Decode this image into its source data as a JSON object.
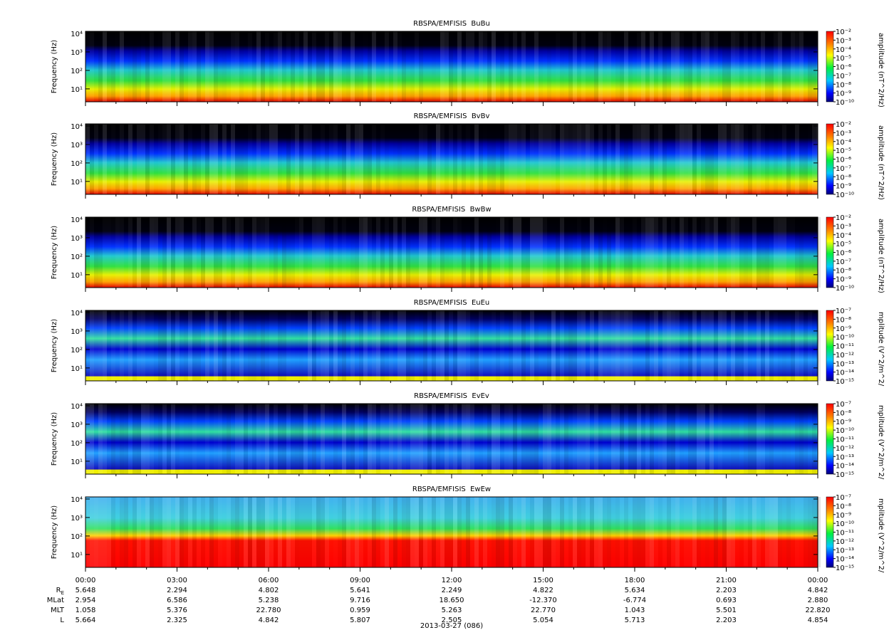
{
  "chart_data": [
    {
      "type": "spectrogram",
      "title": "RBSPA/EMFISIS  BuBu",
      "ylabel": "Frequency (Hz)",
      "log_y": true,
      "ylim": [
        2,
        13000
      ],
      "yticks": [
        {
          "value": 10,
          "label": "10¹"
        },
        {
          "value": 100,
          "label": "10²"
        },
        {
          "value": 1000,
          "label": "10³"
        },
        {
          "value": 10000,
          "label": "10⁴"
        }
      ],
      "colorbar": {
        "label": "amplitude (nT^2/Hz)",
        "lim": [
          1e-10,
          0.01
        ],
        "ticks": [
          {
            "value": 0.01,
            "label": "10⁻²"
          },
          {
            "value": 0.001,
            "label": "10⁻³"
          },
          {
            "value": 0.0001,
            "label": "10⁻⁴"
          },
          {
            "value": 1e-05,
            "label": "10⁻⁵"
          },
          {
            "value": 1e-06,
            "label": "10⁻⁶"
          },
          {
            "value": 1e-07,
            "label": "10⁻⁷"
          },
          {
            "value": 1e-08,
            "label": "10⁻⁸"
          },
          {
            "value": 1e-09,
            "label": "10⁻⁹"
          },
          {
            "value": 1e-10,
            "label": "10⁻¹⁰"
          }
        ]
      }
    },
    {
      "type": "spectrogram",
      "title": "RBSPA/EMFISIS  BvBv",
      "ylabel": "Frequency (Hz)",
      "log_y": true,
      "ylim": [
        2,
        13000
      ],
      "yticks": [
        {
          "value": 10,
          "label": "10¹"
        },
        {
          "value": 100,
          "label": "10²"
        },
        {
          "value": 1000,
          "label": "10³"
        },
        {
          "value": 10000,
          "label": "10⁴"
        }
      ],
      "colorbar": {
        "label": "amplitude (nT^2/Hz)",
        "lim": [
          1e-10,
          0.01
        ],
        "ticks": [
          {
            "value": 0.01,
            "label": "10⁻²"
          },
          {
            "value": 0.001,
            "label": "10⁻³"
          },
          {
            "value": 0.0001,
            "label": "10⁻⁴"
          },
          {
            "value": 1e-05,
            "label": "10⁻⁵"
          },
          {
            "value": 1e-06,
            "label": "10⁻⁶"
          },
          {
            "value": 1e-07,
            "label": "10⁻⁷"
          },
          {
            "value": 1e-08,
            "label": "10⁻⁸"
          },
          {
            "value": 1e-09,
            "label": "10⁻⁹"
          },
          {
            "value": 1e-10,
            "label": "10⁻¹⁰"
          }
        ]
      }
    },
    {
      "type": "spectrogram",
      "title": "RBSPA/EMFISIS  BwBw",
      "ylabel": "Frequency (Hz)",
      "log_y": true,
      "ylim": [
        2,
        13000
      ],
      "yticks": [
        {
          "value": 10,
          "label": "10¹"
        },
        {
          "value": 100,
          "label": "10²"
        },
        {
          "value": 1000,
          "label": "10³"
        },
        {
          "value": 10000,
          "label": "10⁴"
        }
      ],
      "colorbar": {
        "label": "amplitude (nT^2/Hz)",
        "lim": [
          1e-10,
          0.01
        ],
        "ticks": [
          {
            "value": 0.01,
            "label": "10⁻²"
          },
          {
            "value": 0.001,
            "label": "10⁻³"
          },
          {
            "value": 0.0001,
            "label": "10⁻⁴"
          },
          {
            "value": 1e-05,
            "label": "10⁻⁵"
          },
          {
            "value": 1e-06,
            "label": "10⁻⁶"
          },
          {
            "value": 1e-07,
            "label": "10⁻⁷"
          },
          {
            "value": 1e-08,
            "label": "10⁻⁸"
          },
          {
            "value": 1e-09,
            "label": "10⁻⁹"
          },
          {
            "value": 1e-10,
            "label": "10⁻¹⁰"
          }
        ]
      }
    },
    {
      "type": "spectrogram",
      "title": "RBSPA/EMFISIS  EuEu",
      "ylabel": "Frequency (Hz)",
      "log_y": true,
      "ylim": [
        2,
        13000
      ],
      "yticks": [
        {
          "value": 10,
          "label": "10¹"
        },
        {
          "value": 100,
          "label": "10²"
        },
        {
          "value": 1000,
          "label": "10³"
        },
        {
          "value": 10000,
          "label": "10⁴"
        }
      ],
      "colorbar": {
        "label": "mplitude (V^2/m^2/",
        "lim": [
          1e-15,
          1e-07
        ],
        "ticks": [
          {
            "value": 1e-07,
            "label": "10⁻⁷"
          },
          {
            "value": 1e-08,
            "label": "10⁻⁸"
          },
          {
            "value": 1e-09,
            "label": "10⁻⁹"
          },
          {
            "value": 1e-10,
            "label": "10⁻¹⁰"
          },
          {
            "value": 1e-11,
            "label": "10⁻¹¹"
          },
          {
            "value": 1e-12,
            "label": "10⁻¹²"
          },
          {
            "value": 1e-13,
            "label": "10⁻¹³"
          },
          {
            "value": 1e-14,
            "label": "10⁻¹⁴"
          },
          {
            "value": 1e-15,
            "label": "10⁻¹⁵"
          }
        ]
      }
    },
    {
      "type": "spectrogram",
      "title": "RBSPA/EMFISIS  EvEv",
      "ylabel": "Frequency (Hz)",
      "log_y": true,
      "ylim": [
        2,
        13000
      ],
      "yticks": [
        {
          "value": 10,
          "label": "10¹"
        },
        {
          "value": 100,
          "label": "10²"
        },
        {
          "value": 1000,
          "label": "10³"
        },
        {
          "value": 10000,
          "label": "10⁴"
        }
      ],
      "colorbar": {
        "label": "mplitude (V^2/m^2/",
        "lim": [
          1e-15,
          1e-07
        ],
        "ticks": [
          {
            "value": 1e-07,
            "label": "10⁻⁷"
          },
          {
            "value": 1e-08,
            "label": "10⁻⁸"
          },
          {
            "value": 1e-09,
            "label": "10⁻⁹"
          },
          {
            "value": 1e-10,
            "label": "10⁻¹⁰"
          },
          {
            "value": 1e-11,
            "label": "10⁻¹¹"
          },
          {
            "value": 1e-12,
            "label": "10⁻¹²"
          },
          {
            "value": 1e-13,
            "label": "10⁻¹³"
          },
          {
            "value": 1e-14,
            "label": "10⁻¹⁴"
          },
          {
            "value": 1e-15,
            "label": "10⁻¹⁵"
          }
        ]
      }
    },
    {
      "type": "spectrogram",
      "title": "RBSPA/EMFISIS  EwEw",
      "ylabel": "Frequency (Hz)",
      "log_y": true,
      "ylim": [
        2,
        13000
      ],
      "yticks": [
        {
          "value": 10,
          "label": "10¹"
        },
        {
          "value": 100,
          "label": "10²"
        },
        {
          "value": 1000,
          "label": "10³"
        },
        {
          "value": 10000,
          "label": "10⁴"
        }
      ],
      "colorbar": {
        "label": "mplitude (V^2/m^2/",
        "lim": [
          1e-15,
          1e-07
        ],
        "ticks": [
          {
            "value": 1e-07,
            "label": "10⁻⁷"
          },
          {
            "value": 1e-08,
            "label": "10⁻⁸"
          },
          {
            "value": 1e-09,
            "label": "10⁻⁹"
          },
          {
            "value": 1e-10,
            "label": "10⁻¹⁰"
          },
          {
            "value": 1e-11,
            "label": "10⁻¹¹"
          },
          {
            "value": 1e-12,
            "label": "10⁻¹²"
          },
          {
            "value": 1e-13,
            "label": "10⁻¹³"
          },
          {
            "value": 1e-14,
            "label": "10⁻¹⁴"
          },
          {
            "value": 1e-15,
            "label": "10⁻¹⁵"
          }
        ]
      }
    }
  ],
  "time_axis": {
    "categories": [
      "00:00",
      "03:00",
      "06:00",
      "09:00",
      "12:00",
      "15:00",
      "18:00",
      "21:00",
      "00:00"
    ],
    "ephemeris": [
      {
        "name": "R",
        "subscript": "E",
        "values": [
          "5.648",
          "2.294",
          "4.802",
          "5.641",
          "2.249",
          "4.822",
          "5.634",
          "2.203",
          "4.842"
        ]
      },
      {
        "name": "MLat",
        "values": [
          "2.954",
          "6.586",
          "5.238",
          "9.716",
          "18.650",
          "-12.370",
          "-6.774",
          "0.693",
          "2.880"
        ]
      },
      {
        "name": "MLT",
        "values": [
          "1.058",
          "5.376",
          "22.780",
          "0.959",
          "5.263",
          "22.770",
          "1.043",
          "5.501",
          "22.820"
        ]
      },
      {
        "name": "L",
        "values": [
          "5.664",
          "2.325",
          "4.842",
          "5.807",
          "2.505",
          "5.054",
          "5.713",
          "2.203",
          "4.854"
        ]
      }
    ],
    "label": "2013-03-27 (086)"
  }
}
